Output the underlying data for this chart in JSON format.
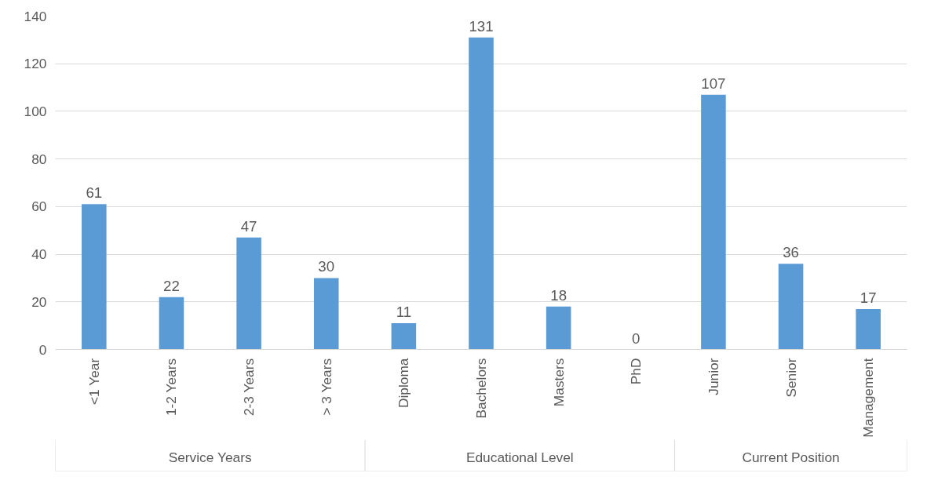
{
  "chart_data": {
    "type": "bar",
    "categories": [
      "<1 Year",
      "1-2 Years",
      "2-3 Years",
      "> 3 Years",
      "Diploma",
      "Bachelors",
      "Masters",
      "PhD",
      "Junior",
      "Senior",
      "Management"
    ],
    "values": [
      61,
      22,
      47,
      30,
      11,
      131,
      18,
      0,
      107,
      36,
      17
    ],
    "color": "#5b9bd5",
    "ylim": [
      0,
      140
    ],
    "yticks": [
      0,
      20,
      40,
      60,
      80,
      100,
      120,
      140
    ],
    "grid": "y",
    "data_labels": true,
    "annotations": [
      "Service Years",
      "Educational Level",
      "Current Position"
    ]
  }
}
